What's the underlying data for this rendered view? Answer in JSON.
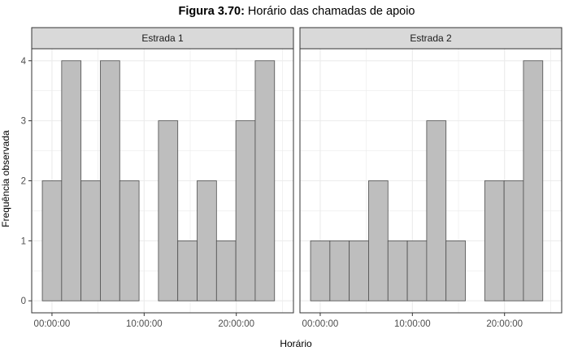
{
  "figure": {
    "title_bold": "Figura 3.70:",
    "title_rest": " Horário das chamadas de apoio",
    "xlabel": "Horário",
    "ylabel": "Frequência observada"
  },
  "colors": {
    "bar_fill": "#bebebe",
    "bar_stroke": "#4d4d4d",
    "strip_fill": "#d9d9d9",
    "panel_border": "#333333",
    "grid": "#ebebeb",
    "text": "#000000",
    "tick_text": "#4d4d4d"
  },
  "chart_data": {
    "type": "bar",
    "subtype": "histogram",
    "x_unit": "hours",
    "bin_width": 2.1,
    "bin_start": -1.05,
    "xlim": [
      -2.2,
      26.2
    ],
    "ylim": [
      -0.2,
      4.2
    ],
    "x_ticks": [
      0,
      10,
      20
    ],
    "x_tick_labels": [
      "00:00:00",
      "10:00:00",
      "20:00:00"
    ],
    "y_ticks": [
      0,
      1,
      2,
      3,
      4
    ],
    "grid": true,
    "facets": [
      {
        "strip": "Estrada 1",
        "counts": [
          2,
          4,
          2,
          4,
          2,
          0,
          3,
          1,
          2,
          1,
          3,
          4
        ]
      },
      {
        "strip": "Estrada 2",
        "counts": [
          1,
          1,
          1,
          2,
          1,
          1,
          3,
          1,
          0,
          2,
          2,
          4
        ]
      }
    ]
  }
}
